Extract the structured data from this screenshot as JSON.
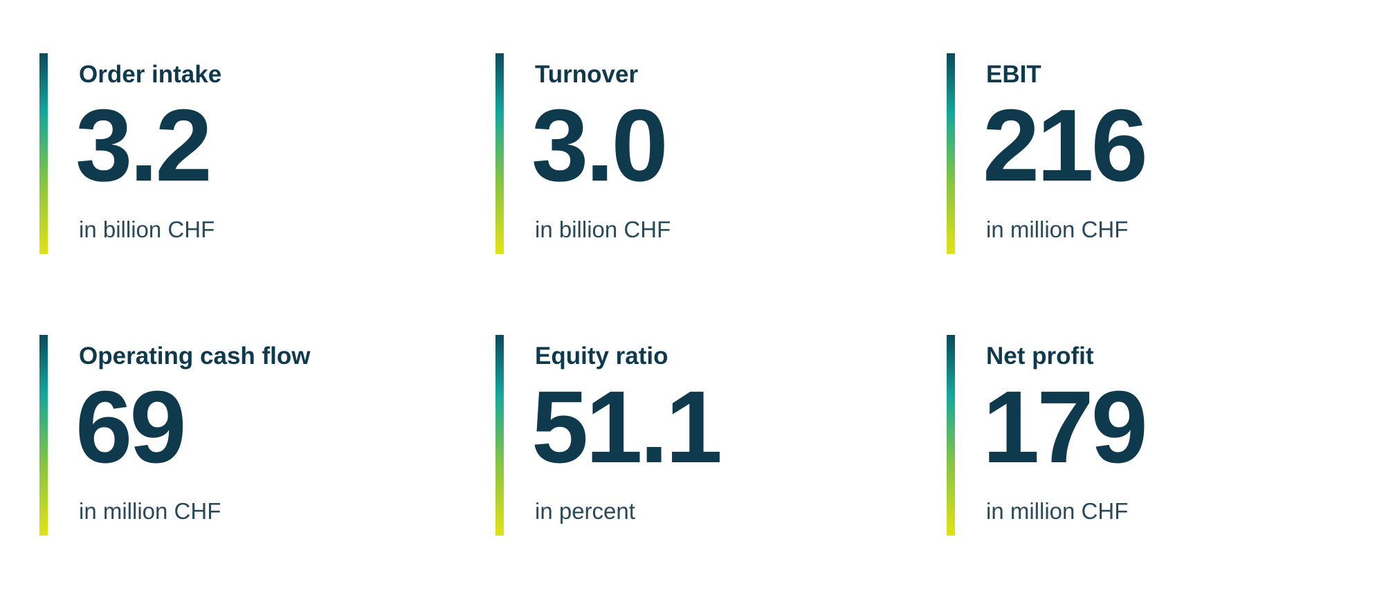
{
  "colors": {
    "text_dark": "#0f3a4d",
    "text_unit": "#2a4a5a",
    "bar_gradient": [
      "#0b4a5e",
      "#14a89c",
      "#88c540",
      "#e2e213"
    ]
  },
  "kpis": [
    {
      "label": "Order intake",
      "value": "3.2",
      "unit": "in billion CHF"
    },
    {
      "label": "Turnover",
      "value": "3.0",
      "unit": "in billion CHF"
    },
    {
      "label": "EBIT",
      "value": "216",
      "unit": "in million CHF"
    },
    {
      "label": "Operating cash flow",
      "value": "69",
      "unit": "in million CHF"
    },
    {
      "label": "Equity ratio",
      "value": "51.1",
      "unit": "in percent"
    },
    {
      "label": "Net profit",
      "value": "179",
      "unit": "in million CHF"
    }
  ]
}
